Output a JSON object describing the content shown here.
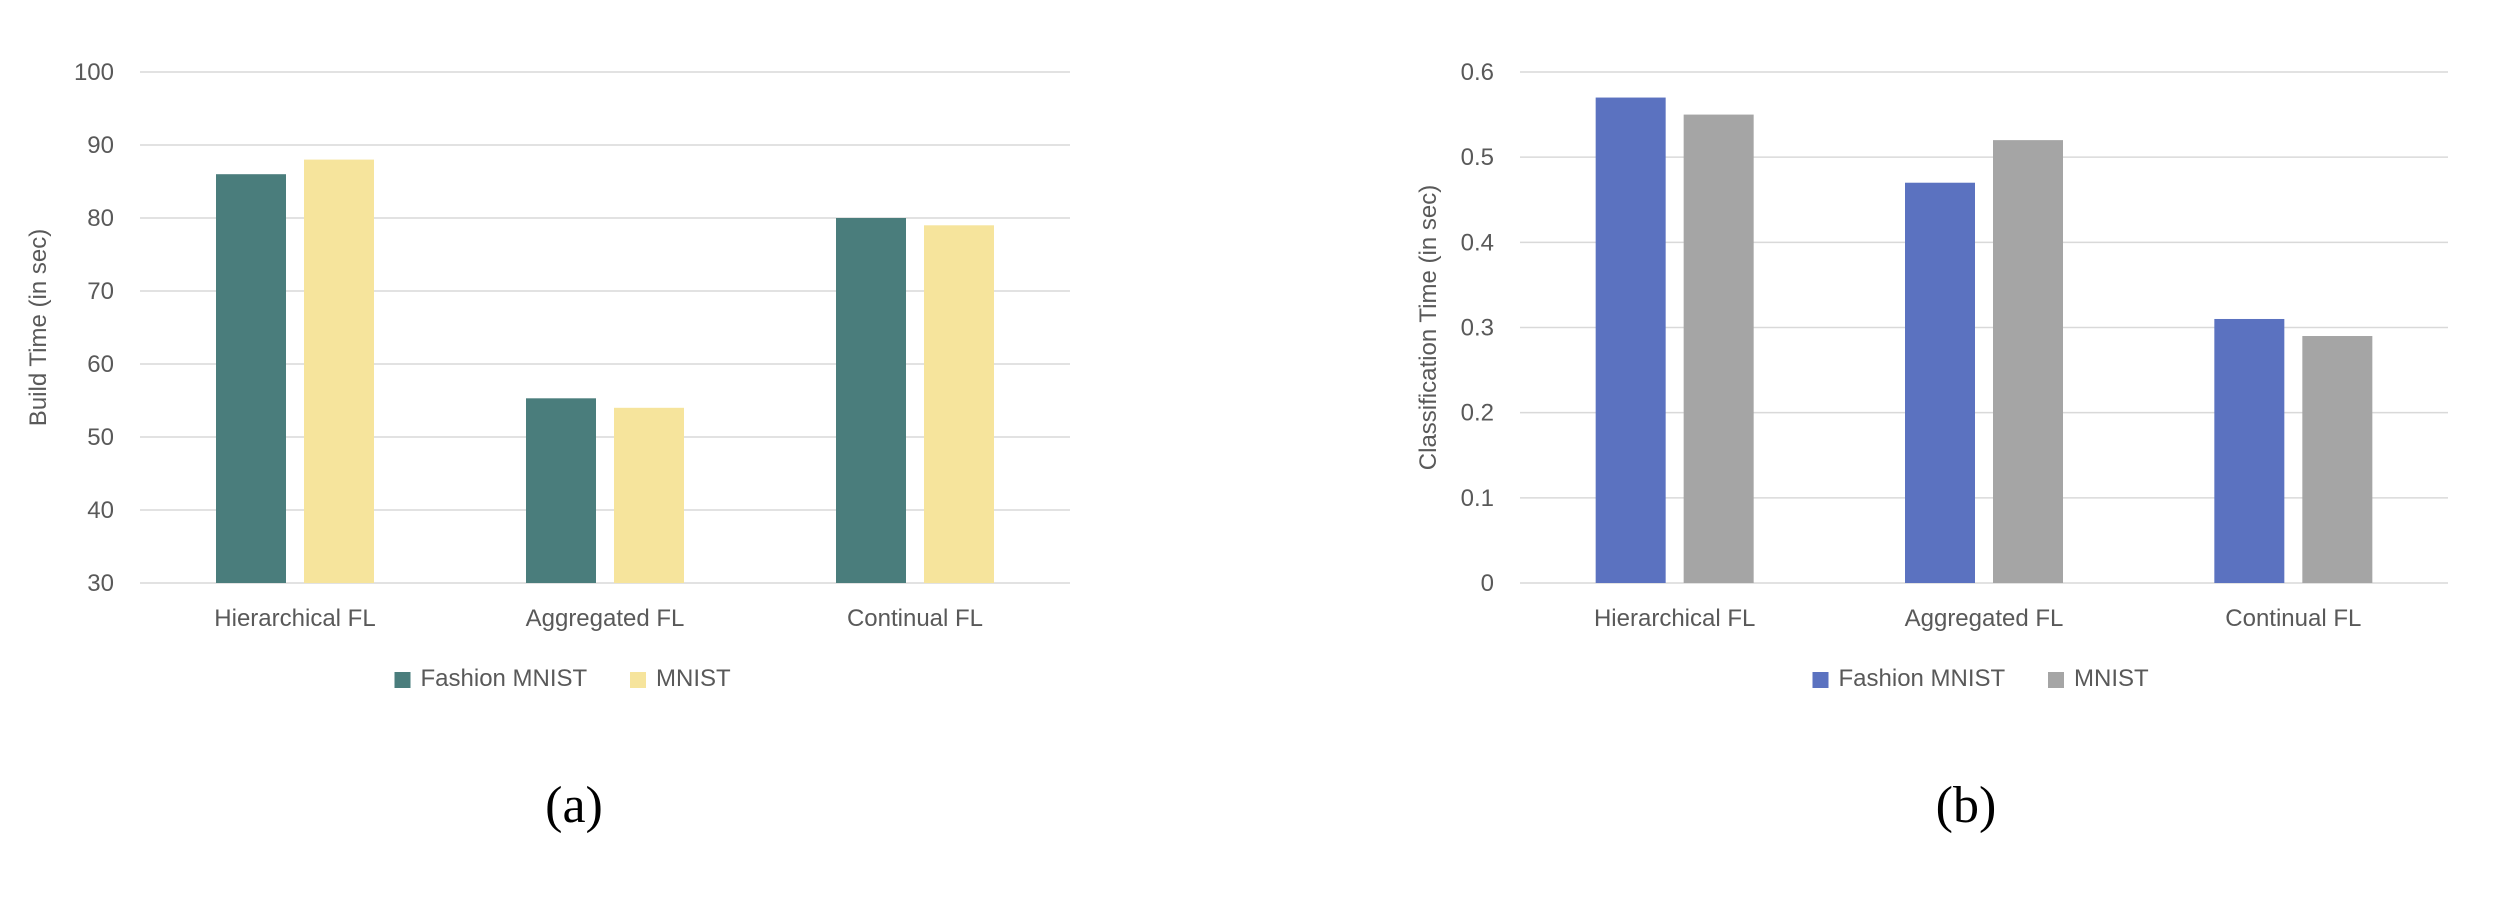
{
  "chart_data": [
    {
      "type": "bar",
      "panel_label": "(a)",
      "categories": [
        "Hierarchical FL",
        "Aggregated FL",
        "Continual FL"
      ],
      "series": [
        {
          "name": "Fashion MNIST",
          "values": [
            86,
            55.3,
            80
          ],
          "color": "#4a7d7c"
        },
        {
          "name": "MNIST",
          "values": [
            88,
            54,
            79
          ],
          "color": "#f6e49c"
        }
      ],
      "ylabel": "Build Time (in sec)",
      "ylim": [
        30,
        100
      ],
      "yticks": [
        "30",
        "40",
        "50",
        "60",
        "70",
        "80",
        "90",
        "100"
      ],
      "grid": true,
      "legend_position": "bottom"
    },
    {
      "type": "bar",
      "panel_label": "(b)",
      "categories": [
        "Hierarchical FL",
        "Aggregated FL",
        "Continual FL"
      ],
      "series": [
        {
          "name": "Fashion MNIST",
          "values": [
            0.57,
            0.47,
            0.31
          ],
          "color": "#5b72c0"
        },
        {
          "name": "MNIST",
          "values": [
            0.55,
            0.52,
            0.29
          ],
          "color": "#a5a5a5"
        }
      ],
      "ylabel": "Classification Time (in sec)",
      "ylim": [
        0,
        0.6
      ],
      "yticks": [
        "0",
        "0.1",
        "0.2",
        "0.3",
        "0.4",
        "0.5",
        "0.6"
      ],
      "grid": true,
      "legend_position": "bottom"
    }
  ]
}
